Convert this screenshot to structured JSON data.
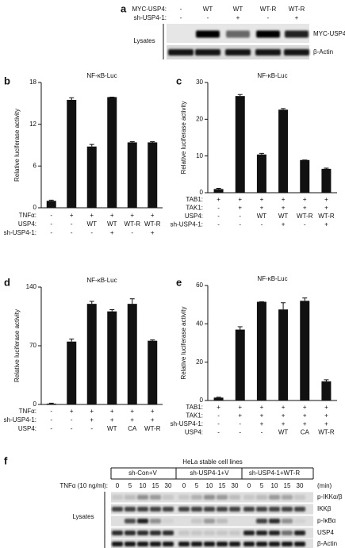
{
  "blot_a": {
    "panel": "a",
    "header": [
      {
        "label": "MYC-USP4:",
        "lanes": [
          "-",
          "WT",
          "WT",
          "WT-R",
          "WT-R"
        ]
      },
      {
        "label": "sh-USP4-1:",
        "lanes": [
          "-",
          "-",
          "+",
          "-",
          "+"
        ]
      }
    ],
    "group": "Lysates",
    "bands": [
      "MYC-USP4",
      "β-Actin"
    ]
  },
  "chart_data": [
    {
      "type": "bar",
      "panel": "b",
      "title": "NF-κB-Luc",
      "y_label": "Relative luciferase activity",
      "values": [
        1,
        15.5,
        8.8,
        15.9,
        9.4,
        9.4
      ],
      "errors": [
        0.1,
        0.3,
        0.3,
        0,
        0.1,
        0.1
      ],
      "color": "#111111",
      "ylim": [
        0,
        18
      ],
      "yticks": [
        0,
        6,
        12,
        18
      ],
      "conditions": [
        {
          "label": "TNFα:",
          "values": [
            "-",
            "+",
            "+",
            "+",
            "+",
            "+"
          ]
        },
        {
          "label": "USP4:",
          "values": [
            "-",
            "-",
            "WT",
            "WT",
            "WT-R",
            "WT-R"
          ]
        },
        {
          "label": "sh-USP4-1:",
          "values": [
            "-",
            "-",
            "-",
            "+",
            "-",
            "+"
          ]
        }
      ]
    },
    {
      "type": "bar",
      "panel": "c",
      "title": "NF-κB-Luc",
      "y_label": "Relative luciferase activity",
      "values": [
        1,
        26.3,
        10.4,
        22.6,
        8.9,
        6.5
      ],
      "errors": [
        0.2,
        0.4,
        0.3,
        0.3,
        0,
        0.2
      ],
      "color": "#111111",
      "ylim": [
        0,
        30
      ],
      "yticks": [
        0,
        10,
        20,
        30
      ],
      "conditions": [
        {
          "label": "TAB1:",
          "values": [
            "+",
            "+",
            "+",
            "+",
            "+",
            "+"
          ]
        },
        {
          "label": "TAK1:",
          "values": [
            "-",
            "+",
            "+",
            "+",
            "+",
            "+"
          ]
        },
        {
          "label": "USP4:",
          "values": [
            "-",
            "-",
            "WT",
            "WT",
            "WT-R",
            "WT-R"
          ]
        },
        {
          "label": "sh-USP4-1:",
          "values": [
            "-",
            "-",
            "-",
            "+",
            "-",
            "+"
          ]
        }
      ]
    },
    {
      "type": "bar",
      "panel": "d",
      "title": "NF-κB-Luc",
      "y_label": "Relative luciferase activity",
      "values": [
        1,
        75,
        120,
        111,
        120,
        76
      ],
      "errors": [
        0.5,
        3,
        3,
        2,
        6,
        1
      ],
      "color": "#111111",
      "ylim": [
        0,
        140
      ],
      "yticks": [
        0,
        70,
        140
      ],
      "conditions": [
        {
          "label": "TNFα:",
          "values": [
            "-",
            "+",
            "+",
            "+",
            "+",
            "+"
          ]
        },
        {
          "label": "sh-USP4-1:",
          "values": [
            "-",
            "-",
            "+",
            "+",
            "+",
            "+"
          ]
        },
        {
          "label": "USP4:",
          "values": [
            "-",
            "-",
            "-",
            "WT",
            "CA",
            "WT-R"
          ]
        }
      ]
    },
    {
      "type": "bar",
      "panel": "e",
      "title": "NF-κB-Luc",
      "y_label": "Relative luciferase activity",
      "values": [
        1.5,
        37,
        51.5,
        47.5,
        52,
        10
      ],
      "errors": [
        0.2,
        1.5,
        0,
        3.5,
        1.5,
        0.8
      ],
      "color": "#111111",
      "ylim": [
        0,
        60
      ],
      "yticks": [
        0,
        20,
        40,
        60
      ],
      "conditions": [
        {
          "label": "TAB1:",
          "values": [
            "+",
            "+",
            "+",
            "+",
            "+",
            "+"
          ]
        },
        {
          "label": "TAK1:",
          "values": [
            "-",
            "+",
            "+",
            "+",
            "+",
            "+"
          ]
        },
        {
          "label": "sh-USP4-1:",
          "values": [
            "-",
            "-",
            "+",
            "+",
            "+",
            "+"
          ]
        },
        {
          "label": "USP4:",
          "values": [
            "-",
            "-",
            "-",
            "WT",
            "CA",
            "WT-R"
          ]
        }
      ]
    }
  ],
  "blot_f": {
    "panel": "f",
    "title": "HeLa stable cell lines",
    "groups": [
      "sh-Con+V",
      "sh-USP4-1+V",
      "sh-USP4-1+WT-R"
    ],
    "treatment": "TNFα (10 ng/ml):",
    "times": [
      "0",
      "5",
      "10",
      "15",
      "30"
    ],
    "unit": "(min)",
    "group": "Lysates",
    "bands": [
      "p-IKKα/β",
      "IKKβ",
      "p-IκBα",
      "USP4",
      "β-Actin"
    ]
  }
}
